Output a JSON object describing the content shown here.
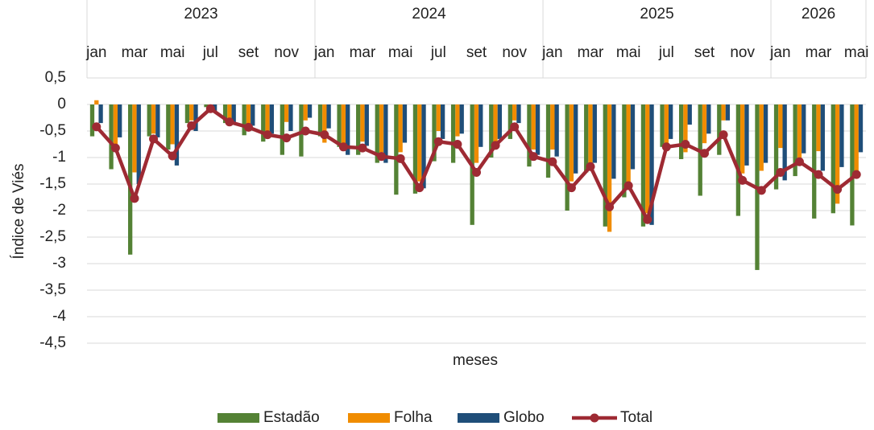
{
  "chart_data": {
    "type": "bar_line",
    "y_label": "Índice de Viés",
    "x_label": "meses",
    "year_groups": [
      {
        "label": "2023",
        "months": 12
      },
      {
        "label": "2024",
        "months": 12
      },
      {
        "label": "2025",
        "months": 12
      },
      {
        "label": "2026",
        "months": 5
      }
    ],
    "categories": [
      "jan",
      null,
      "mar",
      null,
      "mai",
      null,
      "jul",
      null,
      "set",
      null,
      "nov",
      null,
      "jan",
      null,
      "mar",
      null,
      "mai",
      null,
      "jul",
      null,
      "set",
      null,
      "nov",
      null,
      "jan",
      null,
      "mar",
      null,
      "mai",
      null,
      "jul",
      null,
      "set",
      null,
      "nov",
      null,
      "jan",
      null,
      "mar",
      null,
      "mai"
    ],
    "series": [
      {
        "name": "Estadão",
        "color": "#548235",
        "kind": "bar",
        "values": [
          -0.6,
          -1.22,
          -2.83,
          -0.6,
          -0.85,
          -0.35,
          -0.05,
          -0.35,
          -0.58,
          -0.7,
          -0.95,
          -0.98,
          -0.6,
          -0.8,
          -0.95,
          -1.1,
          -1.7,
          -1.68,
          -1.07,
          -1.1,
          -2.27,
          -1.0,
          -0.65,
          -1.17,
          -1.38,
          -2.0,
          -1.28,
          -2.3,
          -1.75,
          -2.3,
          -0.8,
          -1.03,
          -1.72,
          -0.95,
          -2.1,
          -3.12,
          -1.6,
          -1.35,
          -2.15,
          -2.05,
          -2.28
        ]
      },
      {
        "name": "Folha",
        "color": "#f08c00",
        "kind": "bar",
        "values": [
          0.08,
          -0.75,
          -1.28,
          -0.55,
          -0.75,
          -0.3,
          -0.05,
          -0.3,
          -0.38,
          -0.5,
          -0.33,
          -0.3,
          -0.72,
          -0.78,
          -0.7,
          -0.9,
          -0.9,
          -1.45,
          -0.5,
          -0.6,
          -1.1,
          -0.7,
          -0.3,
          -0.85,
          -0.85,
          -1.45,
          -1.2,
          -2.4,
          -1.5,
          -2.05,
          -0.75,
          -0.9,
          -0.73,
          -0.3,
          -1.3,
          -1.25,
          -0.82,
          -1.0,
          -0.88,
          -1.87,
          -1.25
        ]
      },
      {
        "name": "Globo",
        "color": "#1f4e79",
        "kind": "bar",
        "values": [
          -0.35,
          -0.62,
          -1.5,
          -0.62,
          -1.15,
          -0.5,
          -0.12,
          -0.38,
          -0.4,
          -0.55,
          -0.5,
          -0.25,
          -0.45,
          -0.95,
          -0.78,
          -1.1,
          -0.72,
          -1.58,
          -0.65,
          -0.55,
          -0.8,
          -0.65,
          -0.35,
          -0.95,
          -0.98,
          -1.3,
          -1.1,
          -1.4,
          -1.22,
          -2.27,
          -0.65,
          -0.38,
          -0.55,
          -0.3,
          -1.15,
          -1.1,
          -1.43,
          -0.92,
          -1.25,
          -1.18,
          -0.9
        ]
      },
      {
        "name": "Total",
        "color": "#9e2a33",
        "kind": "line",
        "values": [
          -0.42,
          -0.82,
          -1.77,
          -0.65,
          -0.97,
          -0.4,
          -0.08,
          -0.33,
          -0.43,
          -0.57,
          -0.63,
          -0.5,
          -0.57,
          -0.8,
          -0.82,
          -0.98,
          -1.02,
          -1.57,
          -0.7,
          -0.75,
          -1.28,
          -0.77,
          -0.42,
          -0.98,
          -1.08,
          -1.57,
          -1.17,
          -1.93,
          -1.53,
          -2.17,
          -0.8,
          -0.75,
          -0.92,
          -0.57,
          -1.43,
          -1.62,
          -1.28,
          -1.08,
          -1.32,
          -1.6,
          -1.32
        ]
      }
    ],
    "ylim": [
      -4.5,
      0.5
    ],
    "yticks": [
      {
        "value": 0.5,
        "label": "0,5"
      },
      0,
      {
        "value": -0.5,
        "label": "-0,5"
      },
      -1,
      {
        "value": -1.5,
        "label": "-1,5"
      },
      -2,
      {
        "value": -2.5,
        "label": "-2,5"
      },
      -3,
      {
        "value": -3.5,
        "label": "-3,5"
      },
      -4,
      {
        "value": -4.5,
        "label": "-4,5"
      }
    ],
    "grid": true,
    "legend": "bottom"
  }
}
